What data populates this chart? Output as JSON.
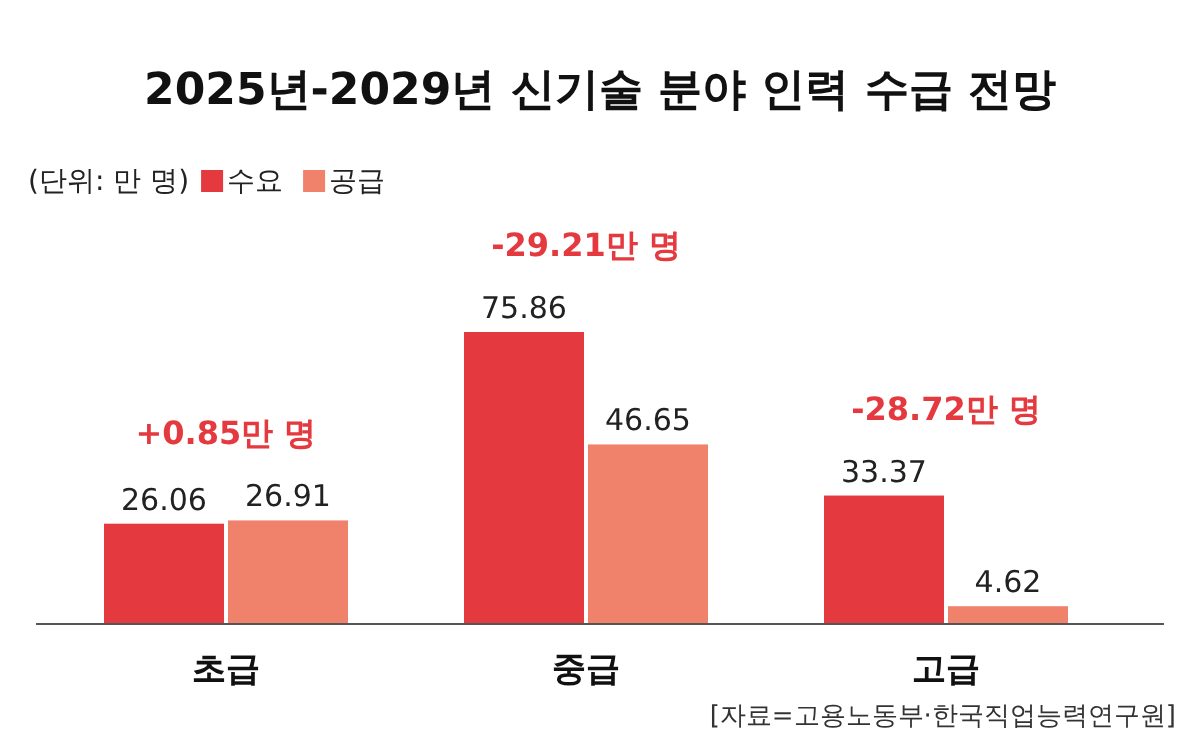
{
  "chart_data": {
    "type": "bar",
    "title": "2025년-2029년 신기술 분야 인력 수급 전망",
    "subtitle": "(단위: 만 명)",
    "categories": [
      "초급",
      "중급",
      "고급"
    ],
    "series": [
      {
        "name": "수요",
        "color": "#e4393f",
        "values": [
          26.06,
          75.86,
          33.37
        ]
      },
      {
        "name": "공급",
        "color": "#f0826c",
        "values": [
          26.91,
          46.65,
          4.62
        ]
      }
    ],
    "data_labels": true,
    "legend": "top left",
    "annotations": [
      "+0.85만 명",
      "-29.21만 명",
      "-28.72만 명",
      "[자료=고용노동부·한국직업능력연구원]"
    ]
  }
}
